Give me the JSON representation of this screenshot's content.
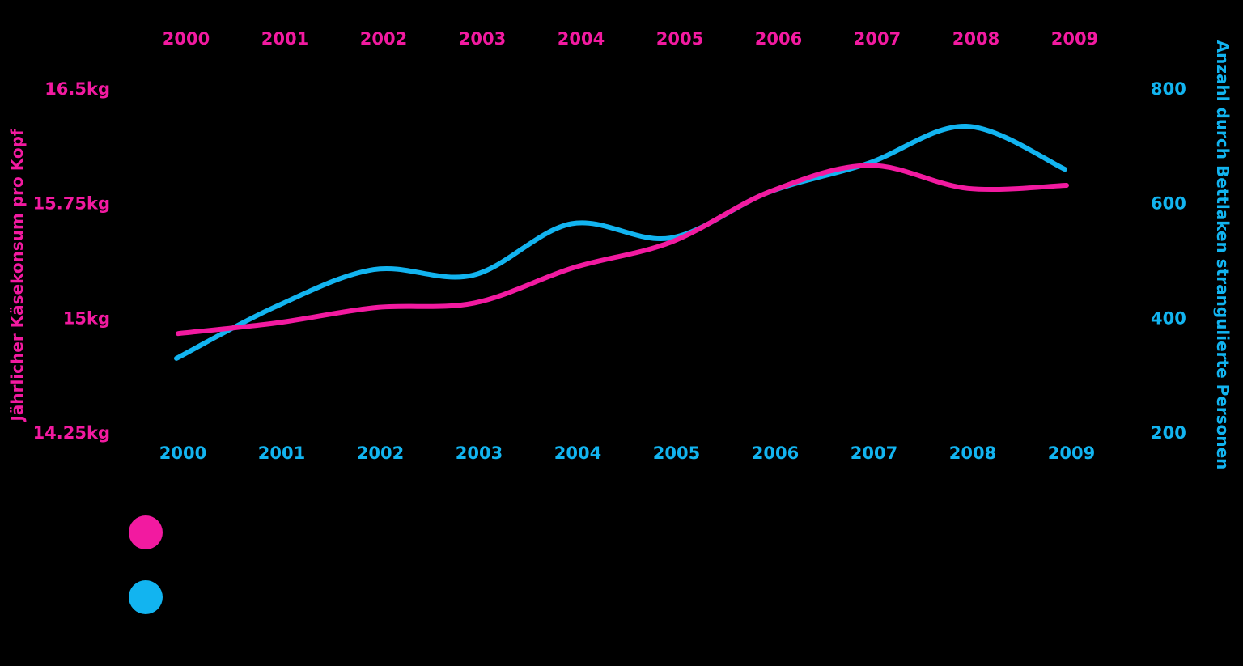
{
  "chart_data": {
    "type": "line",
    "x": [
      2000,
      2001,
      2002,
      2003,
      2004,
      2005,
      2006,
      2007,
      2008,
      2009
    ],
    "x_tick_labels": [
      "2000",
      "2001",
      "2002",
      "2003",
      "2004",
      "2005",
      "2006",
      "2007",
      "2008",
      "2009"
    ],
    "series": [
      {
        "axis": "left",
        "color": "#f21aa0",
        "values": [
          14.9,
          14.97,
          15.07,
          15.1,
          15.33,
          15.5,
          15.83,
          16.0,
          15.85,
          15.87
        ]
      },
      {
        "axis": "right",
        "color": "#12b4f0",
        "values": [
          330,
          420,
          485,
          475,
          565,
          540,
          620,
          670,
          735,
          660
        ]
      }
    ],
    "y_left": {
      "label": "Jährlicher Käsekonsum pro Kopf",
      "range": [
        14.25,
        16.5
      ],
      "ticks": [
        14.25,
        15,
        15.75,
        16.5
      ],
      "tick_labels": [
        "14.25kg",
        "15kg",
        "15.75kg",
        "16.5kg"
      ]
    },
    "y_right": {
      "label": "Anzahl durch Bettlaken strangulierte Personen",
      "range": [
        200,
        800
      ],
      "ticks": [
        200,
        400,
        600,
        800
      ],
      "tick_labels": [
        "200",
        "400",
        "600",
        "800"
      ]
    },
    "grid": false,
    "legend": [
      {
        "color": "#f21aa0"
      },
      {
        "color": "#12b4f0"
      }
    ]
  }
}
